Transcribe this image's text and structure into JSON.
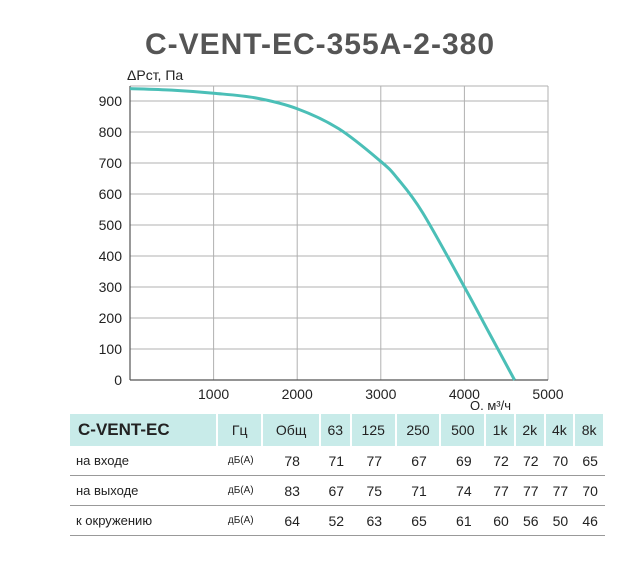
{
  "chart_data": {
    "type": "line",
    "title": "C-VENT-EC-355A-2-380",
    "ylabel": "ΔPст, Па",
    "xlabel": "Q, м³/ч",
    "xlim": [
      0,
      5000
    ],
    "ylim": [
      0,
      950
    ],
    "x_ticks": [
      1000,
      2000,
      3000,
      4000,
      5000
    ],
    "y_ticks": [
      0,
      100,
      200,
      300,
      400,
      500,
      600,
      700,
      800,
      900
    ],
    "grid": true,
    "series": [
      {
        "color": "#4bbfb7",
        "x": [
          0,
          500,
          1000,
          1500,
          2000,
          2500,
          3000,
          3200,
          3500,
          4000,
          4300,
          4600
        ],
        "y": [
          940,
          935,
          925,
          910,
          875,
          810,
          705,
          650,
          540,
          300,
          150,
          0
        ]
      }
    ]
  },
  "table": {
    "header": [
      "C-VENT-EC",
      "Гц",
      "Общ",
      "63",
      "125",
      "250",
      "500",
      "1k",
      "2k",
      "4k",
      "8k"
    ],
    "rows": [
      {
        "label": "на входе",
        "unit": "дБ(А)",
        "values": [
          "78",
          "71",
          "77",
          "67",
          "69",
          "72",
          "72",
          "70",
          "65"
        ]
      },
      {
        "label": "на выходе",
        "unit": "дБ(А)",
        "values": [
          "83",
          "67",
          "75",
          "71",
          "74",
          "77",
          "77",
          "77",
          "70"
        ]
      },
      {
        "label": "к окружению",
        "unit": "дБ(А)",
        "values": [
          "64",
          "52",
          "63",
          "65",
          "61",
          "60",
          "56",
          "50",
          "46"
        ]
      }
    ]
  },
  "colors": {
    "curve": "#4bbfb7",
    "header_bg": "#c8ebe9",
    "grid": "#b0b0b0"
  }
}
